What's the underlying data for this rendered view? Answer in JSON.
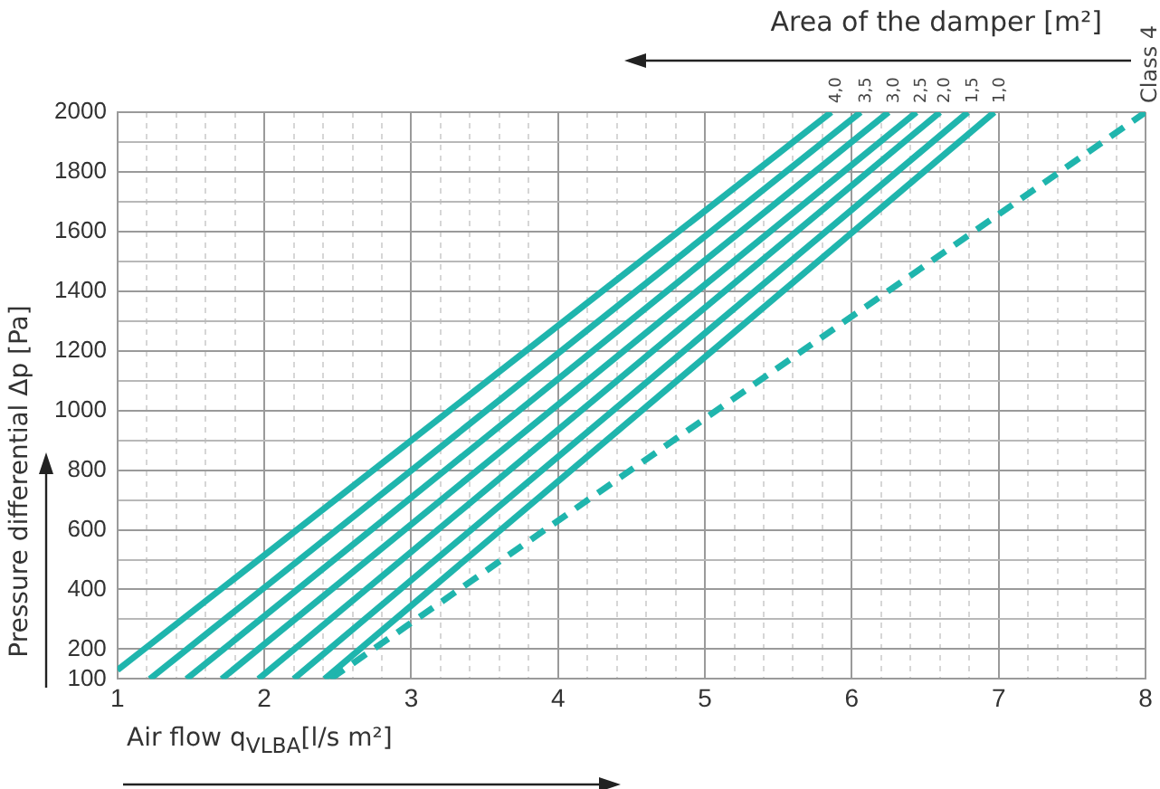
{
  "chart_data": {
    "type": "line",
    "xlabel": "Air flow q$_{VLBA}$[l/s m²]",
    "ylabel": "Pressure differential Δp [Pa]",
    "annotations": [
      "Area of the damper [m²]"
    ],
    "xlim": [
      1,
      8
    ],
    "ylim": [
      100,
      2000
    ],
    "xticks": [
      1,
      {
        "value": 1.2,
        "label": null
      },
      {
        "value": 1.4,
        "label": null
      },
      {
        "value": 1.6,
        "label": null
      },
      {
        "value": 1.8,
        "label": null
      },
      2,
      {
        "value": 2.2,
        "label": null
      },
      {
        "value": 2.4,
        "label": null
      },
      {
        "value": 2.6,
        "label": null
      },
      {
        "value": 2.8,
        "label": null
      },
      3,
      {
        "value": 3.2,
        "label": null
      },
      {
        "value": 3.4,
        "label": null
      },
      {
        "value": 3.6,
        "label": null
      },
      {
        "value": 3.8,
        "label": null
      },
      4,
      {
        "value": 4.2,
        "label": null
      },
      {
        "value": 4.4,
        "label": null
      },
      {
        "value": 4.6,
        "label": null
      },
      {
        "value": 4.8,
        "label": null
      },
      5,
      {
        "value": 5.2,
        "label": null
      },
      {
        "value": 5.4,
        "label": null
      },
      {
        "value": 5.6,
        "label": null
      },
      {
        "value": 5.8,
        "label": null
      },
      6,
      {
        "value": 6.2,
        "label": null
      },
      {
        "value": 6.4,
        "label": null
      },
      {
        "value": 6.6,
        "label": null
      },
      {
        "value": 6.8,
        "label": null
      },
      7,
      {
        "value": 7.2,
        "label": null
      },
      {
        "value": 7.4,
        "label": null
      },
      {
        "value": 7.6,
        "label": null
      },
      {
        "value": 7.8,
        "label": null
      },
      8
    ],
    "yticks": [
      100,
      200,
      {
        "value": 300,
        "label": null
      },
      400,
      {
        "value": 500,
        "label": null
      },
      600,
      {
        "value": 700,
        "label": null
      },
      800,
      {
        "value": 900,
        "label": null
      },
      1000,
      {
        "value": 1100,
        "label": null
      },
      1200,
      {
        "value": 1300,
        "label": null
      },
      1400,
      {
        "value": 1500,
        "label": null
      },
      1600,
      {
        "value": 1700,
        "label": null
      },
      1800,
      {
        "value": 1900,
        "label": null
      },
      2000
    ],
    "grid": true,
    "marker": "none",
    "line_style": "solid",
    "series": [
      {
        "name": "4,0",
        "color": "#1fb5ad",
        "x": [
          1,
          5.86
        ],
        "values": [
          130,
          2000
        ]
      },
      {
        "name": "3,5",
        "color": "#1fb5ad",
        "x": [
          1.22,
          6.06
        ],
        "values": [
          100,
          2000
        ]
      },
      {
        "name": "3,0",
        "color": "#1fb5ad",
        "x": [
          1.47,
          6.25
        ],
        "values": [
          100,
          2000
        ]
      },
      {
        "name": "2,5",
        "color": "#1fb5ad",
        "x": [
          1.71,
          6.44
        ],
        "values": [
          100,
          2000
        ]
      },
      {
        "name": "2,0",
        "color": "#1fb5ad",
        "x": [
          1.96,
          6.6
        ],
        "values": [
          100,
          2000
        ]
      },
      {
        "name": "1,5",
        "color": "#1fb5ad",
        "x": [
          2.2,
          6.79
        ],
        "values": [
          100,
          2000
        ]
      },
      {
        "name": "1,0",
        "color": "#1fb5ad",
        "x": [
          2.41,
          6.97
        ],
        "values": [
          100,
          2000
        ]
      },
      {
        "name": "Class 4",
        "color": "#1fb5ad",
        "line_style": "dashed",
        "x": [
          2.45,
          8
        ],
        "values": [
          100,
          2000
        ]
      }
    ]
  }
}
